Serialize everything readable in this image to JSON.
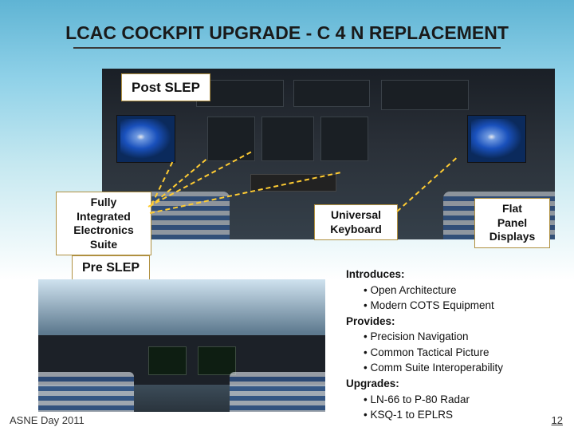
{
  "slide": {
    "title": "LCAC COCKPIT UPGRADE - C 4 N REPLACEMENT",
    "page_number": "12",
    "footer_left": "ASNE Day 2011"
  },
  "labels": {
    "post_slep": "Post SLEP",
    "fully_integrated": "Fully\nIntegrated\nElectronics\nSuite",
    "universal_keyboard": "Universal\nKeyboard",
    "flat_panel": "Flat\nPanel\nDisplays",
    "pre_slep": "Pre SLEP"
  },
  "benefits": {
    "introduces_hd": "Introduces:",
    "introduces_items": [
      "• Open Architecture",
      "• Modern COTS Equipment"
    ],
    "provides_hd": "Provides:",
    "provides_items": [
      "• Precision Navigation",
      "• Common Tactical Picture",
      "• Comm Suite Interoperability"
    ],
    "upgrades_hd": "Upgrades:",
    "upgrades_items": [
      "• LN-66 to P-80 Radar",
      "• KSQ-1 to EPLRS"
    ]
  },
  "style": {
    "label_border": "#b09040",
    "dash_color": "#ffcc33",
    "title_underline": "#3a3a3a",
    "bg_top": "#5fb4d4"
  }
}
